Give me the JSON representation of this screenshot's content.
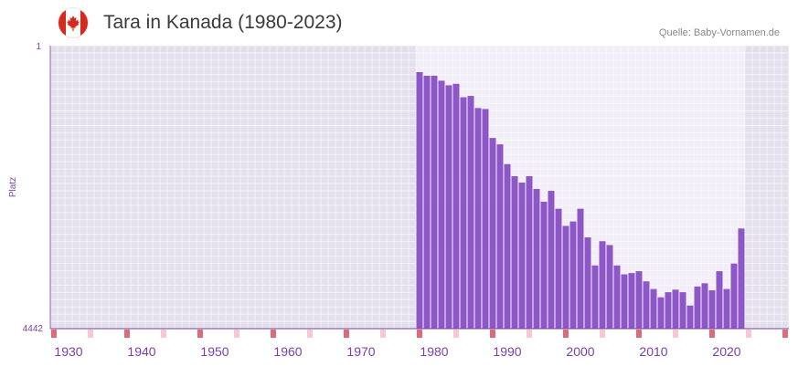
{
  "header": {
    "title": "Tara in Kanada (1980-2023)",
    "source": "Quelle: Baby-Vornamen.de",
    "flag_icon": "canada-flag-icon"
  },
  "colors": {
    "bar": "#8e57c8",
    "plot_bg_out": "#e3dfec",
    "plot_bg_in": "#f1eef8",
    "grid": "#ffffff",
    "axis": "#7a3fa6",
    "decade_marker": "#de6b78",
    "year_marker": "#f7c9d2",
    "tick_text": "#7a3fa6"
  },
  "chart_data": {
    "type": "bar",
    "title": "Tara in Kanada (1980-2023)",
    "xlabel": "",
    "ylabel": "Platz",
    "y_ticks": [
      "1",
      "4442"
    ],
    "ylim": [
      1,
      4442
    ],
    "y_inverted": true,
    "xlim": [
      1928,
      2029
    ],
    "x_ticks": [
      "1930",
      "1940",
      "1950",
      "1960",
      "1970",
      "1980",
      "1990",
      "2000",
      "2010",
      "2020"
    ],
    "categories": [
      1978,
      1979,
      1980,
      1981,
      1982,
      1983,
      1984,
      1985,
      1986,
      1987,
      1988,
      1989,
      1990,
      1991,
      1992,
      1993,
      1994,
      1995,
      1996,
      1997,
      1998,
      1999,
      2000,
      2001,
      2002,
      2003,
      2004,
      2005,
      2006,
      2007,
      2008,
      2009,
      2010,
      2011,
      2012,
      2013,
      2014,
      2015,
      2016,
      2017,
      2018,
      2019,
      2020,
      2021,
      2022
    ],
    "values": [
      416,
      473,
      473,
      551,
      623,
      600,
      811,
      790,
      980,
      995,
      1450,
      1550,
      1860,
      2050,
      2150,
      2050,
      2250,
      2450,
      2280,
      2560,
      2830,
      2760,
      2560,
      3010,
      3450,
      3070,
      3130,
      3450,
      3590,
      3570,
      3540,
      3700,
      3820,
      3950,
      3870,
      3830,
      3870,
      4080,
      3780,
      3730,
      3840,
      3540,
      3820,
      3420,
      2870
    ]
  }
}
